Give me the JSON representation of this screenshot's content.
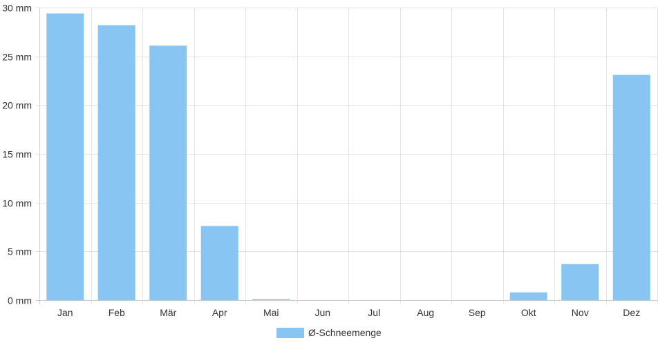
{
  "chart_data": {
    "type": "bar",
    "categories": [
      "Jan",
      "Feb",
      "Mär",
      "Apr",
      "Mai",
      "Jun",
      "Jul",
      "Aug",
      "Sep",
      "Okt",
      "Nov",
      "Dez"
    ],
    "series": [
      {
        "name": "Ø-Schneemenge",
        "values": [
          29.4,
          28.2,
          26.1,
          7.6,
          0.1,
          0,
          0,
          0,
          0,
          0.8,
          3.7,
          23.1
        ]
      }
    ],
    "y_ticks": [
      0,
      5,
      10,
      15,
      20,
      25,
      30
    ],
    "y_unit": "mm",
    "ylim": [
      0,
      30
    ],
    "grid": true,
    "legend": "bottom-center",
    "colors": {
      "bar": "#88c5f2",
      "grid": "#e3e3e3",
      "axis": "#cccccc",
      "text": "#333333"
    }
  }
}
